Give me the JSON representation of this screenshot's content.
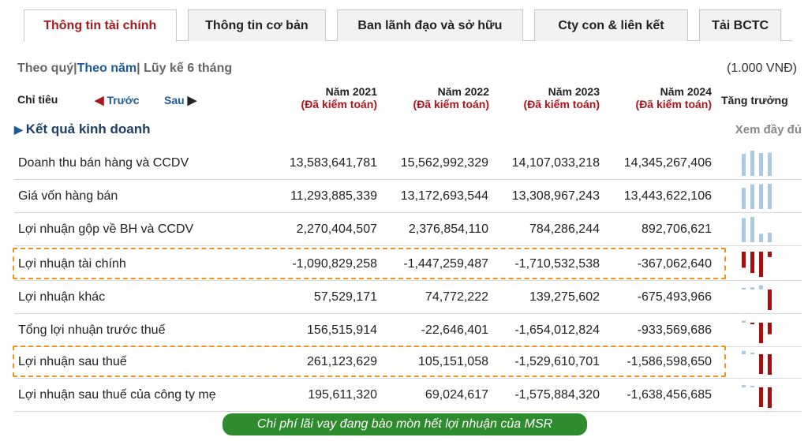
{
  "tabs": [
    "Thông tin tài chính",
    "Thông tin cơ bản",
    "Ban lãnh đạo và sở hữu",
    "Cty con & liên kết",
    "Tải BCTC"
  ],
  "period": {
    "quarter": "Theo quý",
    "sep1": "|",
    "year": "Theo năm",
    "sep2": "|",
    "ytd": " Lũy kế 6 tháng",
    "unit": "(1.000 VNĐ)"
  },
  "header": {
    "indicator": "Chỉ tiêu",
    "prev": "Trước",
    "next": "Sau",
    "growth": "Tăng trưởng",
    "columns": [
      {
        "year": "Năm 2021",
        "status": "(Đã kiểm toán)"
      },
      {
        "year": "Năm 2022",
        "status": "(Đã kiểm toán)"
      },
      {
        "year": "Năm 2023",
        "status": "(Đã kiểm toán)"
      },
      {
        "year": "Năm 2024",
        "status": "(Đã kiểm toán)"
      }
    ]
  },
  "section": {
    "title": "Kết quả kinh doanh",
    "more": "Xem đầy đủ"
  },
  "rows": [
    {
      "name": "Doanh thu bán hàng và CCDV",
      "values": [
        "13,583,641,781",
        "15,562,992,329",
        "14,107,033,218",
        "14,345,267,406"
      ],
      "nums": [
        13583641781,
        15562992329,
        14107033218,
        14345267406
      ]
    },
    {
      "name": "Giá vốn hàng bán",
      "values": [
        "11,293,885,339",
        "13,172,693,544",
        "13,308,967,243",
        "13,443,622,106"
      ],
      "nums": [
        11293885339,
        13172693544,
        13308967243,
        13443622106
      ]
    },
    {
      "name": "Lợi nhuận gộp về BH và CCDV",
      "values": [
        "2,270,404,507",
        "2,376,854,110",
        "784,286,244",
        "892,706,621"
      ],
      "nums": [
        2270404507,
        2376854110,
        784286244,
        892706621
      ]
    },
    {
      "name": "Lợi nhuận tài chính",
      "values": [
        "-1,090,829,258",
        "-1,447,259,487",
        "-1,710,532,538",
        "-367,062,640"
      ],
      "nums": [
        -1090829258,
        -1447259487,
        -1710532538,
        -367062640
      ]
    },
    {
      "name": "Lợi nhuận khác",
      "values": [
        "57,529,171",
        "74,772,222",
        "139,275,602",
        "-675,493,966"
      ],
      "nums": [
        57529171,
        74772222,
        139275602,
        -675493966
      ]
    },
    {
      "name": "Tổng lợi nhuận trước thuế",
      "values": [
        "156,515,914",
        "-22,646,401",
        "-1,654,012,824",
        "-933,569,686"
      ],
      "nums": [
        156515914,
        -22646401,
        -1654012824,
        -933569686
      ]
    },
    {
      "name": "Lợi nhuận sau thuế",
      "values": [
        "261,123,629",
        "105,151,058",
        "-1,529,610,701",
        "-1,586,598,650"
      ],
      "nums": [
        261123629,
        105151058,
        -1529610701,
        -1586598650
      ]
    },
    {
      "name": "Lợi nhuận sau thuế của công ty mẹ",
      "values": [
        "195,611,320",
        "69,024,617",
        "-1,575,884,320",
        "-1,638,456,685"
      ],
      "nums": [
        195611320,
        69024617,
        -1575884320,
        -1638456685
      ]
    }
  ],
  "colors": {
    "positive": "#a9c9e6",
    "negative": "#a80f0f",
    "highlight": "#f0931f",
    "accent": "#b0151b",
    "caption_bg": "#2e8b2e"
  },
  "caption": "Chi phí lãi vay đang bào mòn hết lợi nhuận của MSR"
}
